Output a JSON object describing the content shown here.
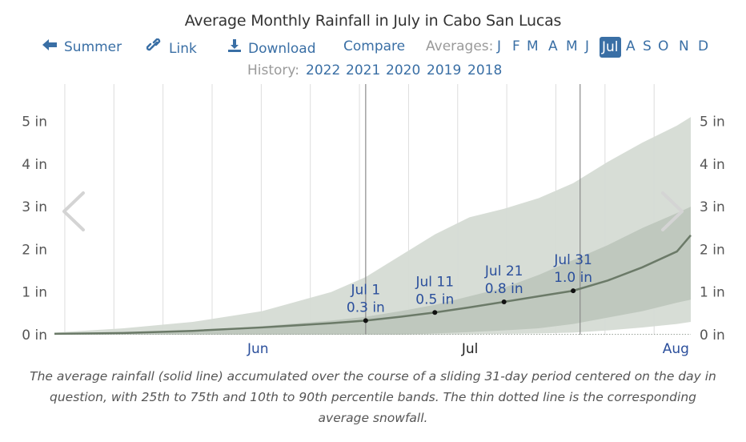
{
  "title": "Average Monthly Rainfall in July in Cabo San Lucas",
  "nav": {
    "summer_label": "Summer",
    "link_label": "Link",
    "download_label": "Download",
    "compare_label": "Compare",
    "averages_label": "Averages:",
    "months": [
      "J",
      "F",
      "M",
      "A",
      "M",
      "J",
      "Jul",
      "A",
      "S",
      "O",
      "N",
      "D"
    ],
    "active_month_index": 6
  },
  "history": {
    "label": "History:",
    "years": [
      "2022",
      "2021",
      "2020",
      "2019",
      "2018"
    ]
  },
  "chart_data": {
    "type": "area",
    "title": "Average Monthly Rainfall in July in Cabo San Lucas",
    "xlabel": "",
    "ylabel": "",
    "x_tick_labels": [
      "Jun",
      "Jul",
      "Aug"
    ],
    "active_x_tick": "Jul",
    "y_tick_labels": [
      "0 in",
      "1 in",
      "2 in",
      "3 in",
      "4 in",
      "5 in"
    ],
    "ylim": [
      0,
      5.5
    ],
    "x_domain_days": [
      0,
      92
    ],
    "x_domain_note": "day 0 = May 17, day 15 = Jun 1, day 45 = Jul 1, day 76 = Aug 1",
    "month_label_days": [
      30,
      61,
      91
    ],
    "grid": true,
    "series": [
      {
        "name": "10th to 90th percentile band",
        "days": [
          0,
          10,
          20,
          30,
          40,
          45,
          50,
          55,
          60,
          65,
          70,
          75,
          80,
          85,
          90,
          92
        ],
        "low": [
          0.0,
          0.0,
          0.0,
          0.0,
          0.0,
          0.0,
          0.0,
          0.0,
          0.01,
          0.02,
          0.03,
          0.05,
          0.1,
          0.17,
          0.25,
          0.3
        ],
        "high": [
          0.05,
          0.15,
          0.3,
          0.55,
          1.0,
          1.35,
          1.85,
          2.35,
          2.75,
          2.95,
          3.2,
          3.55,
          4.05,
          4.5,
          4.9,
          5.1
        ]
      },
      {
        "name": "25th to 75th percentile band",
        "days": [
          0,
          10,
          20,
          30,
          40,
          45,
          50,
          55,
          60,
          65,
          70,
          75,
          80,
          85,
          90,
          92
        ],
        "low": [
          0.0,
          0.0,
          0.0,
          0.0,
          0.0,
          0.0,
          0.0,
          0.03,
          0.06,
          0.1,
          0.15,
          0.25,
          0.4,
          0.55,
          0.75,
          0.82
        ],
        "high": [
          0.02,
          0.05,
          0.1,
          0.2,
          0.33,
          0.42,
          0.55,
          0.7,
          0.9,
          1.1,
          1.4,
          1.75,
          2.1,
          2.5,
          2.85,
          3.0
        ]
      },
      {
        "name": "Average rainfall",
        "days": [
          0,
          10,
          20,
          30,
          40,
          45,
          50,
          55,
          60,
          65,
          70,
          75,
          80,
          85,
          90,
          92
        ],
        "values": [
          0.02,
          0.04,
          0.09,
          0.17,
          0.27,
          0.33,
          0.42,
          0.52,
          0.64,
          0.77,
          0.9,
          1.03,
          1.27,
          1.58,
          1.95,
          2.33
        ]
      },
      {
        "name": "Average snowfall",
        "style": "dotted",
        "days": [
          0,
          92
        ],
        "values": [
          0.0,
          0.0
        ]
      }
    ],
    "annotations": [
      {
        "day": 45,
        "date": "Jul 1",
        "value": 0.3,
        "label": "0.3 in",
        "marker_value": 0.33
      },
      {
        "day": 55,
        "date": "Jul 11",
        "value": 0.5,
        "label": "0.5 in",
        "marker_value": 0.52
      },
      {
        "day": 65,
        "date": "Jul 21",
        "value": 0.8,
        "label": "0.8 in",
        "marker_value": 0.77
      },
      {
        "day": 75,
        "date": "Jul 31",
        "value": 1.0,
        "label": "1.0 in",
        "marker_value": 1.03
      }
    ],
    "highlight_range_days": [
      45,
      76
    ],
    "colors": {
      "outer_band": "#d5dbd4",
      "inner_band": "#bcc5bb",
      "average_line": "#6b7a68",
      "grid": "#dddddd",
      "axis_text": "#555555",
      "annotation_text": "#2b4f9c",
      "month_text": "#2b4f9c",
      "active_month_text": "#222222"
    }
  },
  "arrows": {
    "prev": "chevron-left",
    "next": "chevron-right"
  },
  "caption": "The average rainfall (solid line) accumulated over the course of a sliding 31-day period centered on the day in question, with 25th to 75th and 10th to 90th percentile bands. The thin dotted line is the corresponding average snowfall."
}
